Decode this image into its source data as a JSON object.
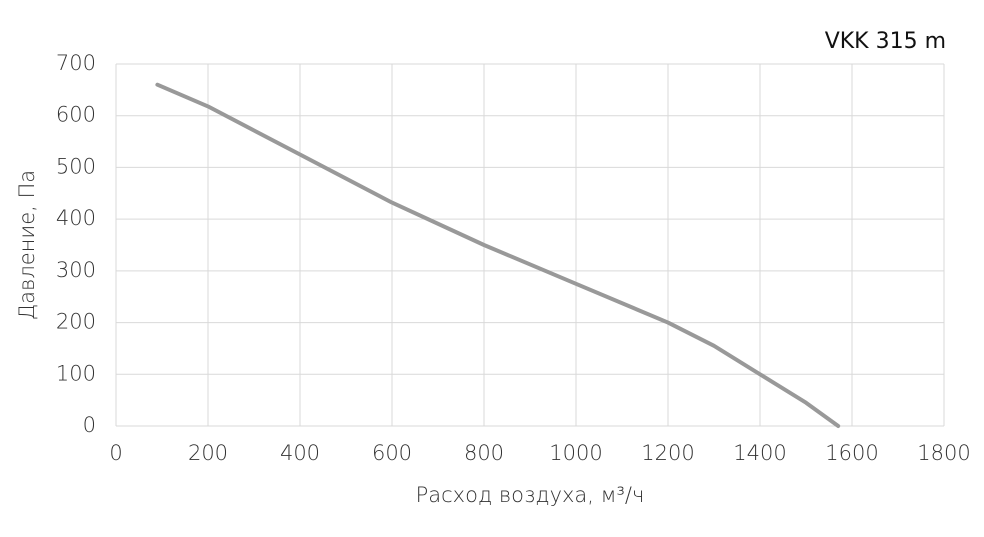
{
  "chart_data": {
    "type": "line",
    "title": "VKK 315 m",
    "x_label": "Расход воздуха, м³/ч",
    "y_label": "Давление, Па",
    "x": [
      90,
      200,
      400,
      600,
      800,
      1000,
      1200,
      1300,
      1400,
      1500,
      1570
    ],
    "series": [
      {
        "name": "VKK 315 m",
        "color": "#999999",
        "values": [
          660,
          618,
          525,
          432,
          350,
          275,
          200,
          155,
          100,
          45,
          0
        ]
      }
    ],
    "xlim": [
      0,
      1800
    ],
    "xticks": [
      0,
      200,
      400,
      600,
      800,
      1000,
      1200,
      1400,
      1600,
      1800
    ],
    "ylim": [
      0,
      700
    ],
    "yticks": [
      0,
      100,
      200,
      300,
      400,
      500,
      600,
      700
    ],
    "grid": true
  }
}
